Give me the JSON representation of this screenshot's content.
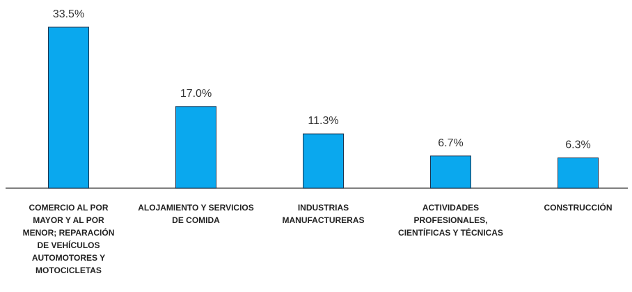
{
  "chart_data": {
    "type": "bar",
    "categories": [
      "COMERCIO AL POR MAYOR Y AL POR MENOR; REPARACIÓN DE VEHÍCULOS AUTOMOTORES Y MOTOCICLETAS",
      "ALOJAMIENTO Y SERVICIOS DE COMIDA",
      "INDUSTRIAS MANUFACTURERAS",
      "ACTIVIDADES PROFESIONALES, CIENTÍFICAS Y TÉCNICAS",
      "CONSTRUCCIÓN"
    ],
    "values": [
      33.5,
      17.0,
      11.3,
      6.7,
      6.3
    ],
    "value_labels": [
      "33.5%",
      "17.0%",
      "11.3%",
      "6.7%",
      "6.3%"
    ],
    "color": "#0aa8ee"
  }
}
